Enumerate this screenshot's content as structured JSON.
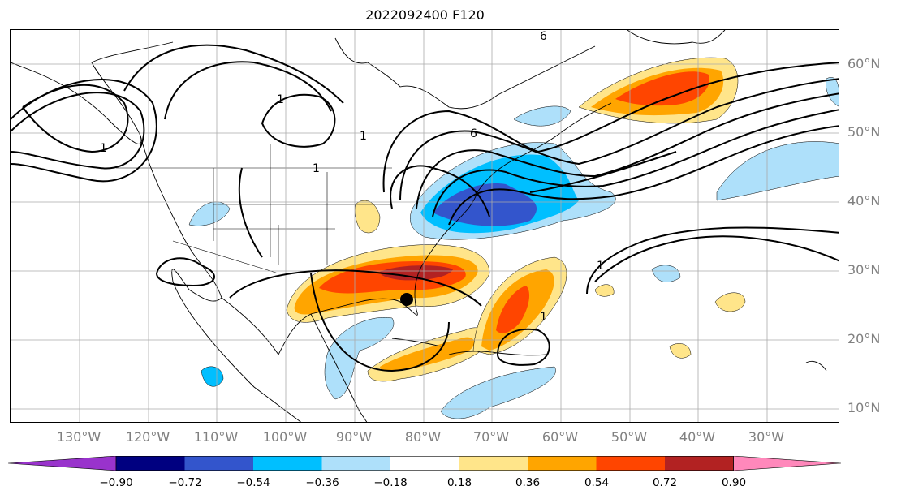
{
  "title": "2022092400 F120",
  "lat_labels": [
    "60°N",
    "50°N",
    "40°N",
    "30°N",
    "20°N",
    "10°N"
  ],
  "lon_labels": [
    "130°W",
    "120°W",
    "110°W",
    "100°W",
    "90°W",
    "80°W",
    "70°W",
    "60°W",
    "50°W",
    "40°W",
    "30°W"
  ],
  "colorbar": {
    "ticks": [
      "−0.90",
      "−0.72",
      "−0.54",
      "−0.36",
      "−0.18",
      "0.18",
      "0.36",
      "0.54",
      "0.72",
      "0.90"
    ],
    "colors": [
      "#9933cc",
      "#000080",
      "#3355cc",
      "#00bfff",
      "#aee0fa",
      "#ffffff",
      "#ffe58a",
      "#ffa500",
      "#ff4500",
      "#b22222",
      "#ff88bb"
    ]
  },
  "contour_labels": [
    "6",
    "6",
    "1",
    "1",
    "1",
    "1",
    "1",
    "1"
  ],
  "marker": "storm-center-dot"
}
